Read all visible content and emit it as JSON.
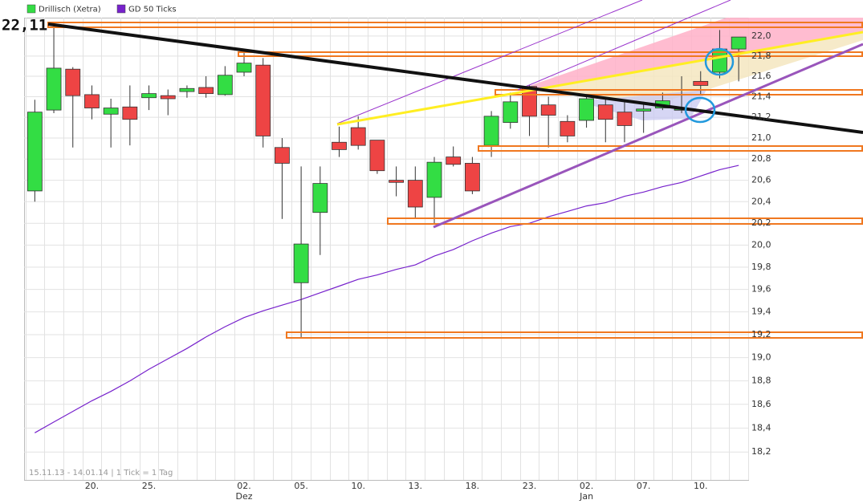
{
  "chart_data": {
    "type": "candlestick",
    "high_label": "22,11",
    "note": "15.11.13 - 14.01.14 | 1 Tick = 1 Tag",
    "log_scale": true,
    "grid": true,
    "legend": "top-left",
    "categories": [
      null,
      null,
      null,
      "20.",
      null,
      null,
      "25.",
      null,
      null,
      null,
      null,
      "02.",
      null,
      null,
      "05.",
      null,
      null,
      "10.",
      null,
      null,
      "13.",
      null,
      null,
      "18.",
      null,
      null,
      "23.",
      null,
      null,
      "02.",
      null,
      null,
      "07.",
      null,
      null,
      "10.",
      null,
      null
    ],
    "x_sublabels": [
      null,
      null,
      null,
      null,
      null,
      null,
      null,
      null,
      null,
      null,
      null,
      "Dez",
      null,
      null,
      null,
      null,
      null,
      null,
      null,
      null,
      null,
      null,
      null,
      null,
      null,
      null,
      null,
      null,
      null,
      "Jan",
      null,
      null,
      null,
      null,
      null,
      null,
      null,
      null
    ],
    "ylim": [
      17.97,
      22.12
    ],
    "yticks": [
      {
        "value": 18.2,
        "label": "18,2"
      },
      {
        "value": 18.4,
        "label": "18,4"
      },
      {
        "value": 18.6,
        "label": "18,6"
      },
      {
        "value": 18.8,
        "label": "18,8"
      },
      {
        "value": 19.0,
        "label": "19,0"
      },
      {
        "value": 19.2,
        "label": "19,2"
      },
      {
        "value": 19.4,
        "label": "19,4"
      },
      {
        "value": 19.6,
        "label": "19,6"
      },
      {
        "value": 19.8,
        "label": "19,8"
      },
      {
        "value": 20.0,
        "label": "20,0"
      },
      {
        "value": 20.2,
        "label": "20,2"
      },
      {
        "value": 20.4,
        "label": "20,4"
      },
      {
        "value": 20.6,
        "label": "20,6"
      },
      {
        "value": 20.8,
        "label": "20,8"
      },
      {
        "value": 21.0,
        "label": "21,0"
      },
      {
        "value": 21.2,
        "label": "21,2"
      },
      {
        "value": 21.4,
        "label": "21,4"
      },
      {
        "value": 21.6,
        "label": "21,6"
      },
      {
        "value": 21.8,
        "label": "21,8"
      },
      {
        "value": 22.0,
        "label": "22,0"
      }
    ],
    "series": [
      {
        "name": "Drillisch (Xetra)",
        "color": "#33dd44",
        "down_color": "#ee4444",
        "open": [
          20.5,
          21.27,
          21.67,
          21.42,
          21.23,
          21.3,
          21.39,
          21.41,
          21.45,
          21.49,
          21.42,
          21.64,
          21.71,
          20.91,
          19.66,
          20.3,
          20.96,
          21.1,
          20.98,
          20.6,
          20.6,
          20.44,
          20.82,
          20.76,
          20.93,
          21.15,
          21.5,
          21.32,
          21.16,
          21.17,
          21.32,
          21.25,
          21.26,
          21.29,
          21.27,
          21.55,
          21.64,
          21.87
        ],
        "high": [
          21.37,
          22.11,
          21.69,
          21.51,
          21.38,
          21.51,
          21.51,
          21.47,
          21.51,
          21.6,
          21.7,
          21.85,
          21.78,
          21.0,
          20.73,
          20.73,
          21.11,
          21.21,
          20.98,
          20.73,
          20.73,
          20.82,
          20.92,
          20.82,
          21.26,
          21.44,
          21.51,
          21.4,
          21.22,
          21.42,
          21.4,
          21.35,
          21.35,
          21.44,
          21.6,
          21.65,
          22.06,
          21.99
        ],
        "low": [
          20.4,
          21.24,
          20.91,
          21.18,
          20.91,
          20.93,
          21.27,
          21.22,
          21.39,
          21.39,
          21.41,
          21.6,
          20.91,
          20.24,
          19.17,
          19.91,
          20.82,
          20.89,
          20.66,
          20.45,
          20.24,
          20.2,
          20.73,
          20.47,
          20.82,
          21.09,
          21.02,
          20.91,
          20.96,
          21.1,
          20.96,
          20.96,
          21.05,
          21.27,
          21.24,
          21.42,
          21.58,
          21.55
        ],
        "close": [
          21.25,
          21.68,
          21.41,
          21.29,
          21.29,
          21.18,
          21.43,
          21.38,
          21.48,
          21.43,
          21.61,
          21.73,
          21.02,
          20.76,
          20.01,
          20.57,
          20.89,
          20.93,
          20.69,
          20.58,
          20.35,
          20.77,
          20.75,
          20.5,
          21.21,
          21.35,
          21.21,
          21.22,
          21.02,
          21.38,
          21.18,
          21.12,
          21.28,
          21.36,
          21.28,
          21.51,
          21.87,
          21.99
        ]
      },
      {
        "name": "GD 50 Ticks",
        "color": "#7722cc",
        "values": [
          18.36,
          18.45,
          18.54,
          18.63,
          18.71,
          18.8,
          18.9,
          18.99,
          19.08,
          19.18,
          19.27,
          19.35,
          19.41,
          19.46,
          19.51,
          19.57,
          19.63,
          19.69,
          19.73,
          19.78,
          19.82,
          19.9,
          19.96,
          20.04,
          20.11,
          20.17,
          20.2,
          20.26,
          20.31,
          20.36,
          20.39,
          20.45,
          20.49,
          20.54,
          20.58,
          20.64,
          20.7,
          20.74
        ]
      }
    ]
  }
}
